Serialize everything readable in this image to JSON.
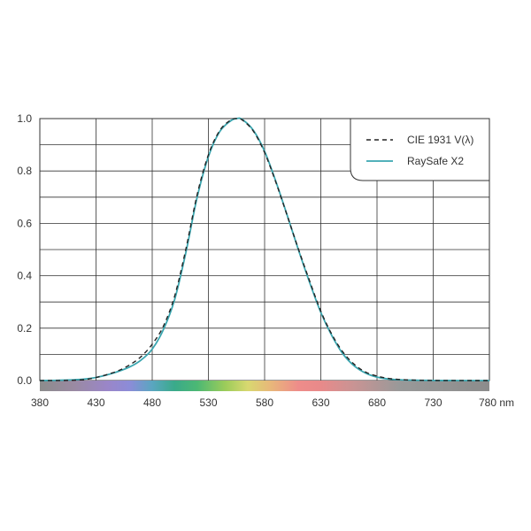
{
  "chart_data": {
    "type": "line",
    "title": "",
    "xlabel": "",
    "ylabel": "",
    "x_unit": "nm",
    "xlim": [
      380,
      780
    ],
    "ylim": [
      0,
      1.0
    ],
    "x_ticks": [
      "380",
      "430",
      "480",
      "530",
      "580",
      "630",
      "680",
      "730",
      "780 nm"
    ],
    "y_ticks": [
      "0.0",
      "0.2",
      "0.4",
      "0.6",
      "0.8",
      "1.0"
    ],
    "grid": true,
    "legend_position": "top-right",
    "colors": {
      "cie": "#222222",
      "raysafe": "#3aa6b0",
      "grid": "#333333"
    },
    "spectrum_band": [
      {
        "x": 380,
        "color": "#8c8c8c"
      },
      {
        "x": 410,
        "color": "#9a8aa2"
      },
      {
        "x": 440,
        "color": "#9a86c8"
      },
      {
        "x": 460,
        "color": "#8c8cd8"
      },
      {
        "x": 480,
        "color": "#5aa6c0"
      },
      {
        "x": 500,
        "color": "#3aaa8a"
      },
      {
        "x": 520,
        "color": "#4cb874"
      },
      {
        "x": 545,
        "color": "#9ccc5a"
      },
      {
        "x": 565,
        "color": "#d8d870"
      },
      {
        "x": 585,
        "color": "#e8b87a"
      },
      {
        "x": 610,
        "color": "#ee8c8a"
      },
      {
        "x": 630,
        "color": "#e88a8a"
      },
      {
        "x": 660,
        "color": "#c89494"
      },
      {
        "x": 700,
        "color": "#999999"
      },
      {
        "x": 780,
        "color": "#8c8c8c"
      }
    ],
    "series": [
      {
        "name": "CIE 1931 V(λ)",
        "style": "dashed",
        "x": [
          380,
          390,
          400,
          410,
          420,
          430,
          440,
          450,
          460,
          470,
          480,
          490,
          500,
          510,
          520,
          530,
          540,
          550,
          555,
          560,
          570,
          580,
          590,
          600,
          610,
          620,
          630,
          640,
          650,
          660,
          670,
          680,
          690,
          700,
          710,
          720,
          730,
          740,
          750,
          760,
          770,
          780
        ],
        "values": [
          4e-05,
          0.00012,
          0.0004,
          0.0012,
          0.004,
          0.0116,
          0.023,
          0.038,
          0.06,
          0.091,
          0.139,
          0.208,
          0.323,
          0.503,
          0.71,
          0.862,
          0.954,
          0.995,
          1.0,
          0.995,
          0.952,
          0.87,
          0.757,
          0.631,
          0.503,
          0.381,
          0.265,
          0.175,
          0.107,
          0.061,
          0.032,
          0.017,
          0.0082,
          0.0041,
          0.0021,
          0.00105,
          0.00052,
          0.00025,
          0.00012,
          6e-05,
          3e-05,
          1.5e-05
        ]
      },
      {
        "name": "RaySafe X2",
        "style": "solid",
        "x": [
          380,
          390,
          400,
          410,
          420,
          430,
          440,
          450,
          460,
          470,
          480,
          490,
          500,
          510,
          520,
          530,
          540,
          550,
          555,
          560,
          570,
          580,
          590,
          600,
          610,
          620,
          630,
          640,
          650,
          660,
          670,
          680,
          690,
          700,
          710,
          720,
          730,
          740,
          750,
          760,
          770,
          780
        ],
        "values": [
          0.0,
          0.0005,
          0.0015,
          0.003,
          0.006,
          0.012,
          0.022,
          0.035,
          0.052,
          0.078,
          0.12,
          0.195,
          0.31,
          0.49,
          0.7,
          0.855,
          0.95,
          0.992,
          1.0,
          0.997,
          0.955,
          0.875,
          0.76,
          0.632,
          0.5,
          0.375,
          0.26,
          0.17,
          0.1,
          0.055,
          0.028,
          0.013,
          0.006,
          0.003,
          0.0015,
          0.0008,
          0.0004,
          0.0002,
          0.0001,
          0.0,
          0.0,
          0.0
        ]
      }
    ]
  }
}
